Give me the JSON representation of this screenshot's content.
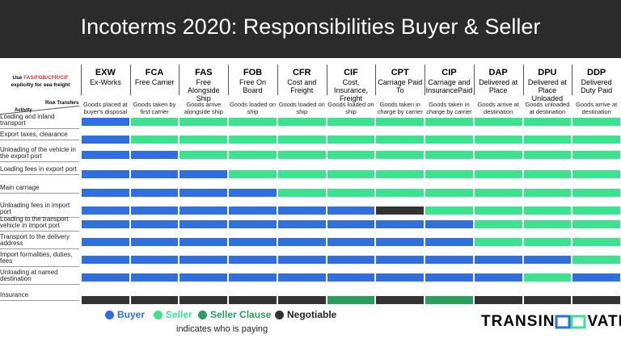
{
  "header": {
    "title": "Incoterms 2020: Responsibilities Buyer & Seller"
  },
  "note": {
    "prefix": "Use",
    "highlight": "FAS/FOB/CFR/CIF",
    "suffix": "explicitly for sea freight"
  },
  "risk_label": "Risk Transfers",
  "activity_label": "Activity",
  "columns": [
    {
      "code": "EXW",
      "name": "Ex-Works",
      "risk": "Goods placed at buyer's disposal"
    },
    {
      "code": "FCA",
      "name": "Free Carrier",
      "risk": "Goods taken by first carrier"
    },
    {
      "code": "FAS",
      "name": "Free Alongside Ship",
      "risk": "Goods arrive alongside ship"
    },
    {
      "code": "FOB",
      "name": "Free On Board",
      "risk": "Goods loaded on ship"
    },
    {
      "code": "CFR",
      "name": "Cost and Freight",
      "risk": "Goods loaded on ship"
    },
    {
      "code": "CIF",
      "name": "Cost, Insurance, Freight",
      "risk": "Goods loaded on ship"
    },
    {
      "code": "CPT",
      "name": "Carriage Paid To",
      "risk": "Goods taken in charge by carrier"
    },
    {
      "code": "CIP",
      "name": "Carriage and InsurancePaid",
      "risk": "Goods taken in charge by carrier"
    },
    {
      "code": "DAP",
      "name": "Delivered at Place",
      "risk": "Goods arrive at destination"
    },
    {
      "code": "DPU",
      "name": "Delivered at Place Unloaded",
      "risk": "Goods unloaded at destination"
    },
    {
      "code": "DDP",
      "name": "Delivered Duty Paid",
      "risk": "Goods arrive at destination"
    }
  ],
  "legend": [
    {
      "label": "Buyer",
      "color": "#2f6fe0"
    },
    {
      "label": "Seller",
      "color": "#3be38e"
    },
    {
      "label": "Seller Clause",
      "color": "#27a05a"
    },
    {
      "label": "Negotiable",
      "color": "#333333"
    }
  ],
  "legend_note": "indicates who is paying",
  "rows": [
    {
      "label": "Loading and inland transport",
      "cells": [
        0,
        1,
        1,
        1,
        1,
        1,
        1,
        1,
        1,
        1,
        1
      ]
    },
    {
      "label": "Export taxes, clearance",
      "cells": [
        0,
        1,
        1,
        1,
        1,
        1,
        1,
        1,
        1,
        1,
        1
      ]
    },
    {
      "label": "Unloading of the vehicle in the export port",
      "cells": [
        0,
        0,
        1,
        1,
        1,
        1,
        1,
        1,
        1,
        1,
        1
      ]
    },
    {
      "label": "Loading fees in export port",
      "cells": [
        0,
        0,
        0,
        1,
        1,
        1,
        1,
        1,
        1,
        1,
        1
      ]
    },
    {
      "label": "Main carriage",
      "cells": [
        0,
        0,
        0,
        0,
        1,
        1,
        1,
        1,
        1,
        1,
        1
      ]
    },
    {
      "label": "Unloading fees in import port",
      "cells": [
        0,
        0,
        0,
        0,
        0,
        0,
        3,
        1,
        1,
        1,
        1
      ]
    },
    {
      "label": "Loading to the transport vehicle in import port",
      "cells": [
        0,
        0,
        0,
        0,
        0,
        0,
        0,
        0,
        1,
        1,
        1
      ]
    },
    {
      "label": "Transport to the delivery address",
      "cells": [
        0,
        0,
        0,
        0,
        0,
        0,
        0,
        0,
        1,
        1,
        1
      ]
    },
    {
      "label": "Import formalities, duties, fees",
      "cells": [
        0,
        0,
        0,
        0,
        0,
        0,
        0,
        0,
        0,
        0,
        1
      ]
    },
    {
      "label": "Unloading at named destination",
      "cells": [
        0,
        0,
        0,
        0,
        0,
        0,
        0,
        0,
        0,
        1,
        0
      ]
    },
    {
      "label": "Insurance",
      "cells": [
        3,
        3,
        3,
        3,
        3,
        2,
        3,
        2,
        3,
        3,
        3
      ]
    }
  ],
  "logo": {
    "left": "TRANSIN",
    "right": "VATE"
  }
}
